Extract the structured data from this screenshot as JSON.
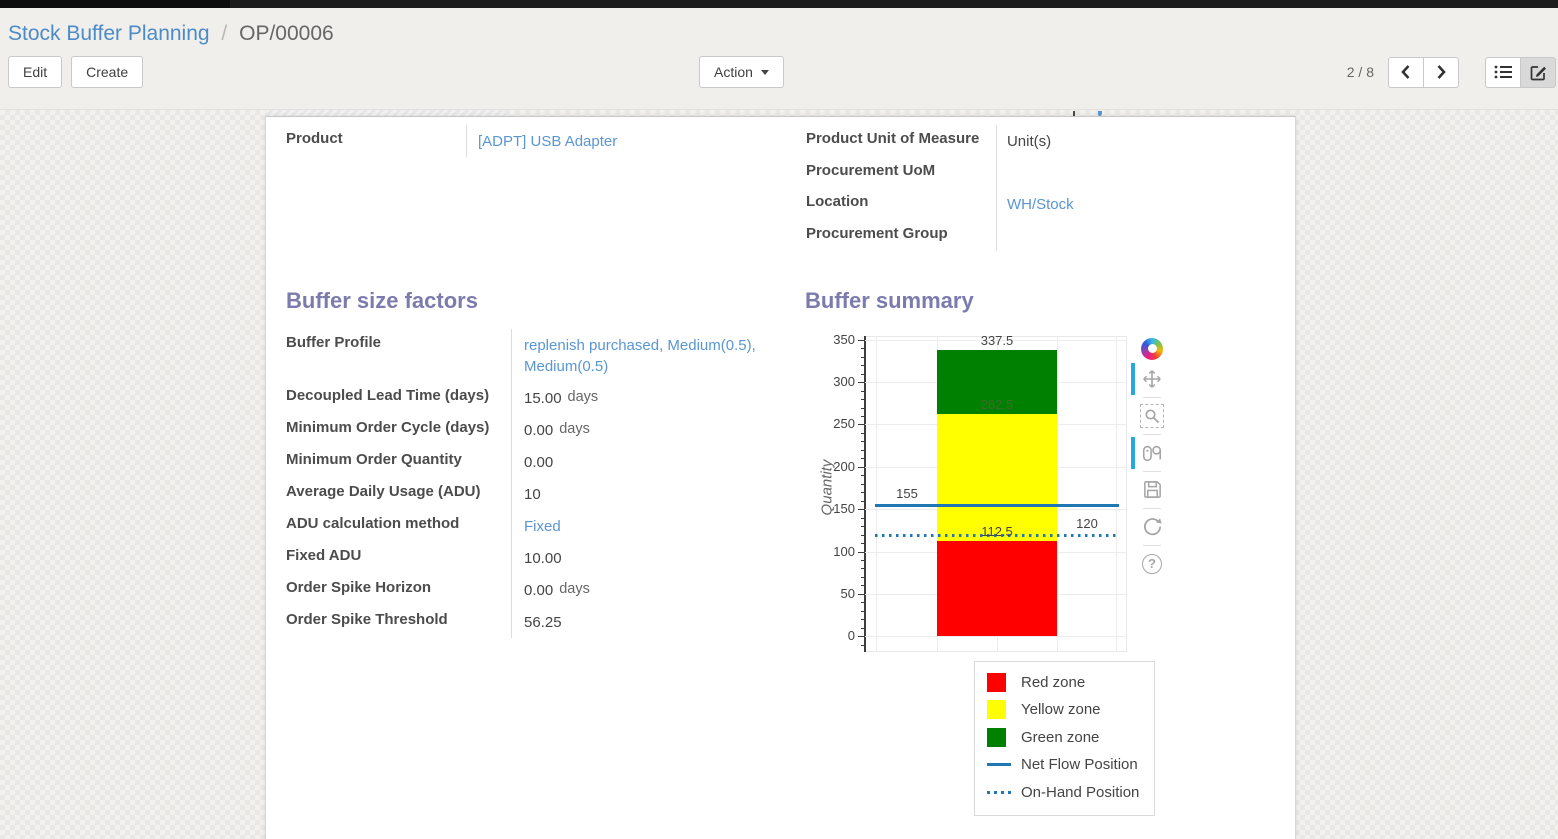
{
  "breadcrumb": {
    "parent": "Stock Buffer Planning",
    "separator": "/",
    "current": "OP/00006"
  },
  "toolbar": {
    "edit_label": "Edit",
    "create_label": "Create",
    "action_label": "Action",
    "pager_value": "2 / 8"
  },
  "sheet": {
    "general": {
      "left": [
        {
          "label": "Product",
          "value": "[ADPT] USB Adapter",
          "link": true
        }
      ],
      "right": [
        {
          "label": "Product Unit of Measure",
          "value": "Unit(s)",
          "link": false
        },
        {
          "label": "Procurement UoM",
          "value": "",
          "link": false
        },
        {
          "label": "Location",
          "value": "WH/Stock",
          "link": true
        },
        {
          "label": "Procurement Group",
          "value": "",
          "link": false
        }
      ]
    },
    "buffer_size_factors": {
      "title": "Buffer size factors",
      "fields": [
        {
          "label": "Buffer Profile",
          "value": "replenish purchased, Medium(0.5), Medium(0.5)",
          "link": true
        },
        {
          "label": "Decoupled Lead Time (days)",
          "value": "15.00",
          "suffix": "days"
        },
        {
          "label": "Minimum Order Cycle (days)",
          "value": "0.00",
          "suffix": "days"
        },
        {
          "label": "Minimum Order Quantity",
          "value": "0.00"
        },
        {
          "label": "Average Daily Usage (ADU)",
          "value": "10"
        },
        {
          "label": "ADU calculation method",
          "value": "Fixed",
          "link": true
        },
        {
          "label": "Fixed ADU",
          "value": "10.00"
        },
        {
          "label": "Order Spike Horizon",
          "value": "0.00",
          "suffix": "days"
        },
        {
          "label": "Order Spike Threshold",
          "value": "56.25"
        }
      ]
    },
    "buffer_summary_title": "Buffer summary"
  },
  "chart_data": {
    "type": "bar",
    "title": "Buffer summary",
    "xlabel": "",
    "ylabel": "Quantity",
    "ylim": [
      -18,
      355
    ],
    "yticks": [
      0,
      50,
      100,
      150,
      200,
      250,
      300,
      350
    ],
    "minor_tick_step": 10,
    "grid": true,
    "zones": [
      {
        "name": "Red zone",
        "from": 0,
        "to": 112.5,
        "color": "#ff0000"
      },
      {
        "name": "Yellow zone",
        "from": 112.5,
        "to": 262.5,
        "color": "#ffff00"
      },
      {
        "name": "Green zone",
        "from": 262.5,
        "to": 337.5,
        "color": "#008000"
      }
    ],
    "zone_labels": [
      {
        "text": "337.5",
        "at": 337.5,
        "color": "#444444"
      },
      {
        "text": "262.5",
        "at": 262.5,
        "color": "#3c6b2f"
      },
      {
        "text": "112.5",
        "at": 112.5,
        "color": "#444444"
      }
    ],
    "lines": [
      {
        "name": "Net Flow Position",
        "value": 155,
        "dash": "solid",
        "color": "#1f77b4",
        "label": "155",
        "label_side": "left"
      },
      {
        "name": "On-Hand Position",
        "value": 120,
        "dash": "dot",
        "color": "#1f77b4",
        "label": "120",
        "label_side": "right"
      }
    ],
    "legend_position": "below-right",
    "legend": [
      {
        "label": "Red zone",
        "swatch": "square",
        "color": "#ff0000"
      },
      {
        "label": "Yellow zone",
        "swatch": "square",
        "color": "#ffff00"
      },
      {
        "label": "Green zone",
        "swatch": "square",
        "color": "#008000"
      },
      {
        "label": "Net Flow Position",
        "swatch": "line",
        "color": "#1f77b4"
      },
      {
        "label": "On-Hand Position",
        "swatch": "dotted",
        "color": "#1f77b4"
      }
    ],
    "modebar_icons": [
      "plotly-logo",
      "pan",
      "box-zoom",
      "toggle-hover",
      "save",
      "reset-axes",
      "help"
    ]
  },
  "colors": {
    "accent_link": "#5a96d2",
    "heading": "#7b7bad",
    "modebar_active": "#29a8e0"
  }
}
